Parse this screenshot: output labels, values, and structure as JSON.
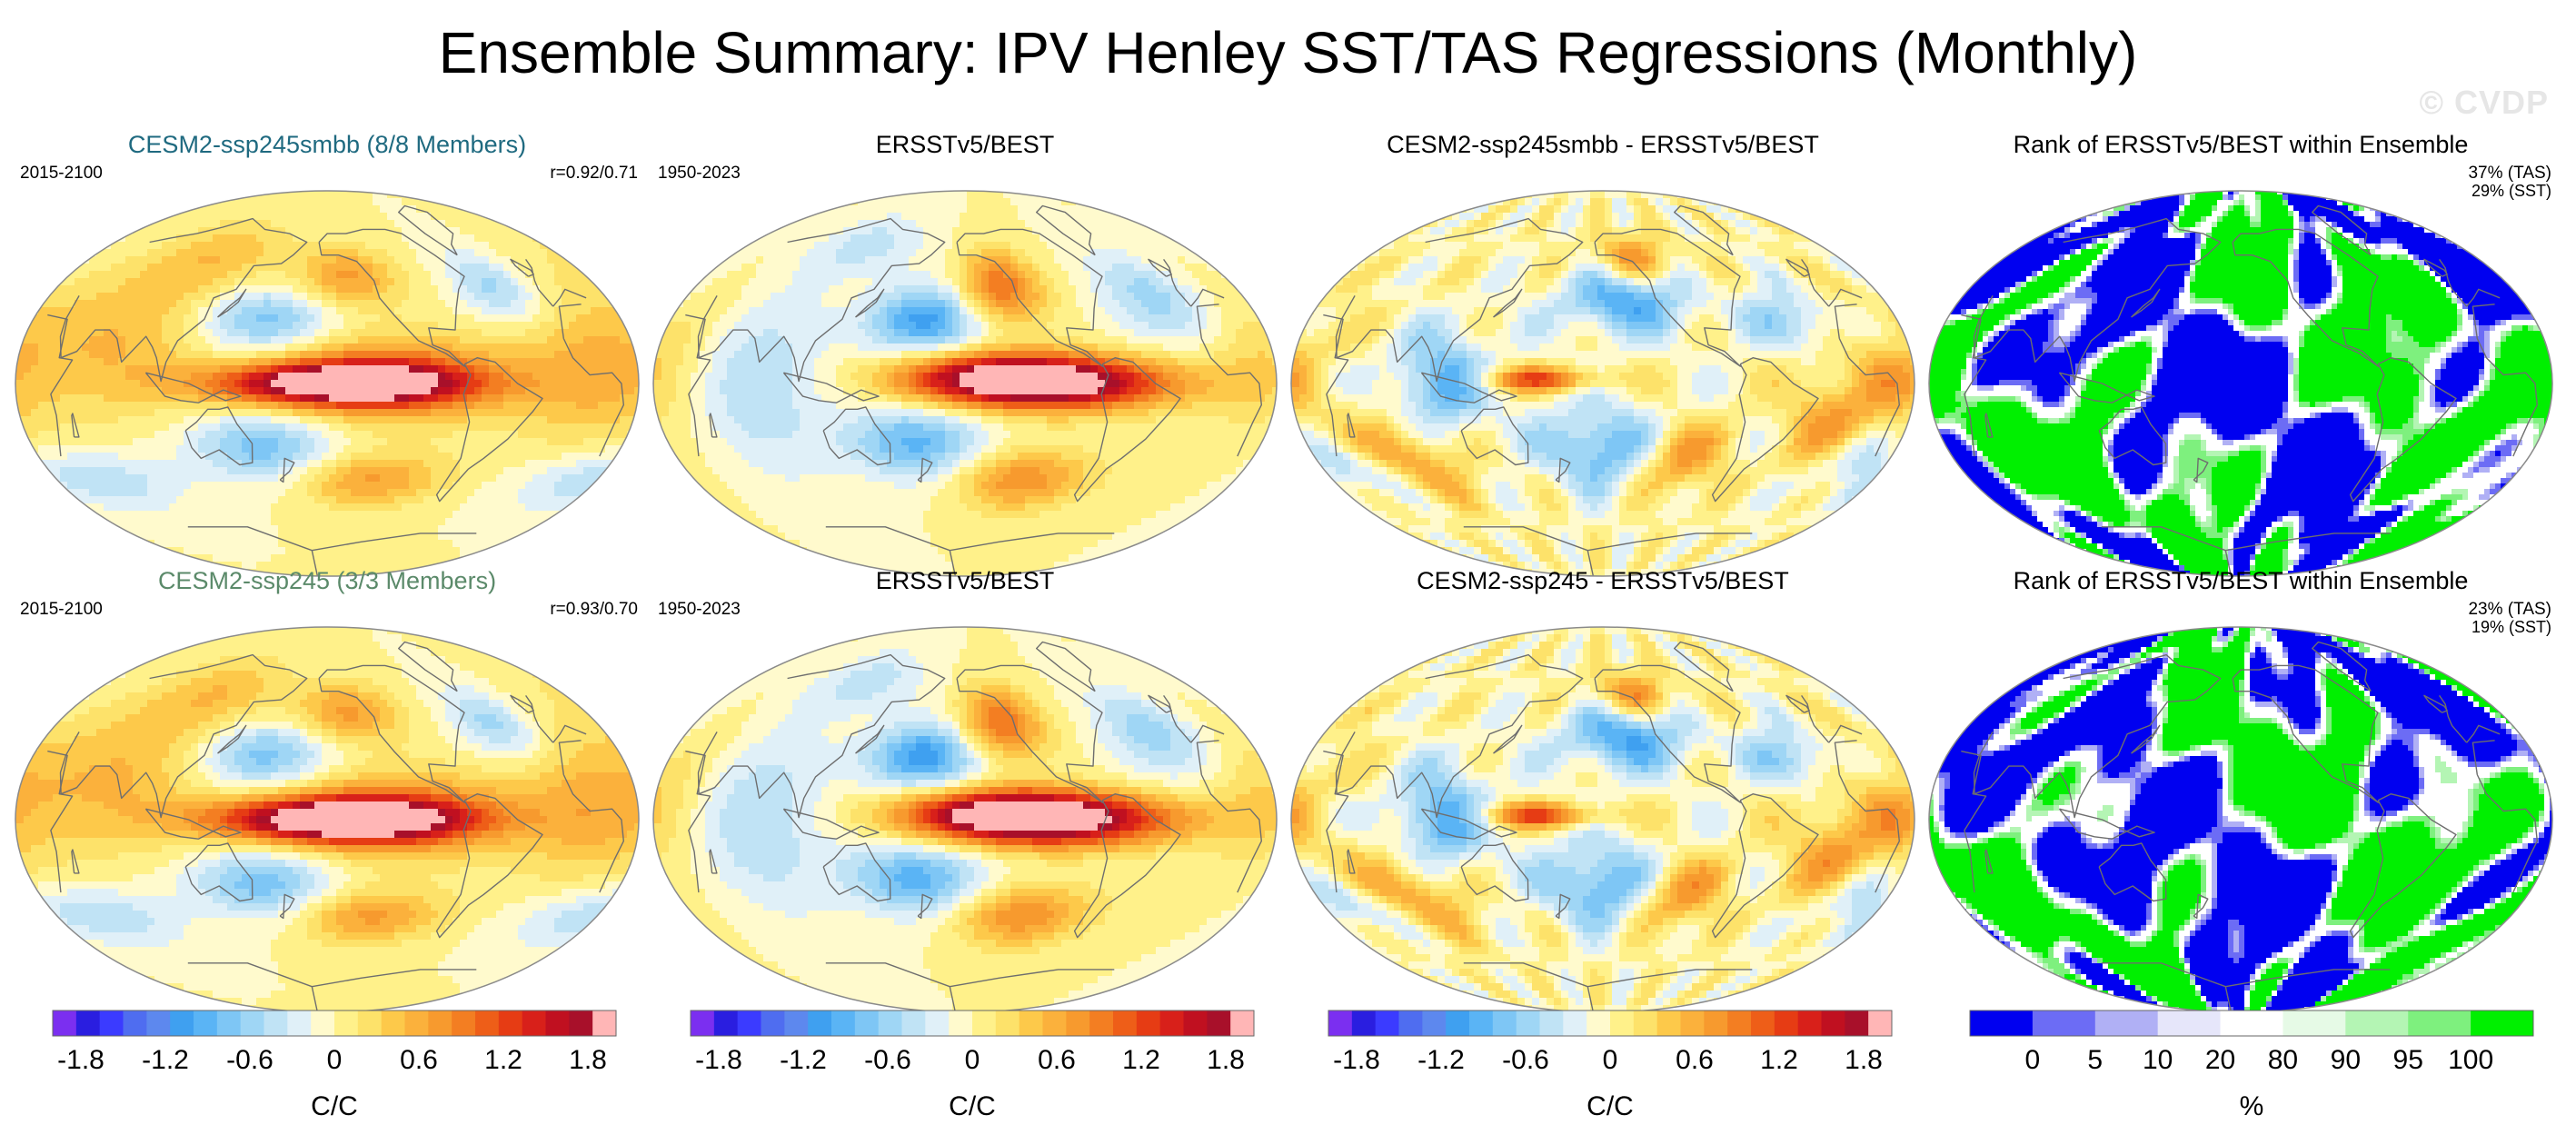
{
  "title": "Ensemble Summary: IPV Henley SST/TAS Regressions (Monthly)",
  "watermark": "© CVDP",
  "chart_data": {
    "type": "heatmap",
    "panels": [
      {
        "row": 1,
        "col": 1,
        "title": "CESM2-ssp245smbb (8/8 Members)",
        "title_color": "#1f6a80",
        "period": "2015-2100",
        "pattern_corr": "r=0.92/0.71",
        "field": "ensemble-mean regression",
        "colorscale": "anomaly"
      },
      {
        "row": 1,
        "col": 2,
        "title": "ERSSTv5/BEST",
        "title_color": "#000000",
        "period": "1950-2023",
        "field": "observed regression",
        "colorscale": "anomaly"
      },
      {
        "row": 1,
        "col": 3,
        "title": "CESM2-ssp245smbb - ERSSTv5/BEST",
        "title_color": "#000000",
        "field": "difference",
        "colorscale": "anomaly"
      },
      {
        "row": 1,
        "col": 4,
        "title": "Rank of ERSSTv5/BEST within Ensemble",
        "title_color": "#000000",
        "rank_tas": "37% (TAS)",
        "rank_sst": "29% (SST)",
        "field": "rank",
        "colorscale": "rank"
      },
      {
        "row": 2,
        "col": 1,
        "title": "CESM2-ssp245 (3/3 Members)",
        "title_color": "#5b8a6a",
        "period": "2015-2100",
        "pattern_corr": "r=0.93/0.70",
        "field": "ensemble-mean regression",
        "colorscale": "anomaly"
      },
      {
        "row": 2,
        "col": 2,
        "title": "ERSSTv5/BEST",
        "title_color": "#000000",
        "period": "1950-2023",
        "field": "observed regression",
        "colorscale": "anomaly"
      },
      {
        "row": 2,
        "col": 3,
        "title": "CESM2-ssp245 - ERSSTv5/BEST",
        "title_color": "#000000",
        "field": "difference",
        "colorscale": "anomaly"
      },
      {
        "row": 2,
        "col": 4,
        "title": "Rank of ERSSTv5/BEST within Ensemble",
        "title_color": "#000000",
        "rank_tas": "23% (TAS)",
        "rank_sst": "19% (SST)",
        "field": "rank",
        "colorscale": "rank"
      }
    ],
    "colorbars": [
      {
        "unit": "C/C",
        "range": [
          -2.0,
          2.0
        ],
        "tick_labels": [
          "-1.8",
          "-1.2",
          "-0.6",
          "0",
          "0.6",
          "1.2",
          "1.8"
        ],
        "tick_values": [
          -1.8,
          -1.2,
          -0.6,
          0,
          0.6,
          1.2,
          1.8
        ]
      },
      {
        "unit": "C/C",
        "range": [
          -2.0,
          2.0
        ],
        "tick_labels": [
          "-1.8",
          "-1.2",
          "-0.6",
          "0",
          "0.6",
          "1.2",
          "1.8"
        ],
        "tick_values": [
          -1.8,
          -1.2,
          -0.6,
          0,
          0.6,
          1.2,
          1.8
        ]
      },
      {
        "unit": "C/C",
        "range": [
          -2.0,
          2.0
        ],
        "tick_labels": [
          "-1.8",
          "-1.2",
          "-0.6",
          "0",
          "0.6",
          "1.2",
          "1.8"
        ],
        "tick_values": [
          -1.8,
          -1.2,
          -0.6,
          0,
          0.6,
          1.2,
          1.8
        ]
      },
      {
        "unit": "%",
        "tick_labels": [
          "0",
          "5",
          "10",
          "20",
          "80",
          "90",
          "95",
          "100"
        ],
        "tick_values": [
          0,
          5,
          10,
          20,
          80,
          90,
          95,
          100
        ]
      }
    ],
    "anomaly_colors": [
      "#7b2ff0",
      "#2a1ee0",
      "#3b3bff",
      "#4f6df0",
      "#5d88ee",
      "#3fa0f0",
      "#5ab4f5",
      "#7ec6f5",
      "#9fd6f5",
      "#c0e3f5",
      "#e0f0f8",
      "#fffacd",
      "#fff18a",
      "#fde26a",
      "#fdc94a",
      "#fbb13c",
      "#f79a2e",
      "#f37e22",
      "#ee5e18",
      "#e63c14",
      "#d8201a",
      "#c01020",
      "#a8102a",
      "#ffb6b6"
    ],
    "rank_colors": [
      "#0000f0",
      "#6c6cf5",
      "#b0b0f5",
      "#e6e6fa",
      "#ffffff",
      "#e6fae6",
      "#b4f5b4",
      "#7ef07e",
      "#00f000"
    ],
    "rank_bounds": [
      -2,
      0,
      5,
      10,
      20,
      80,
      90,
      95,
      100,
      102
    ]
  }
}
